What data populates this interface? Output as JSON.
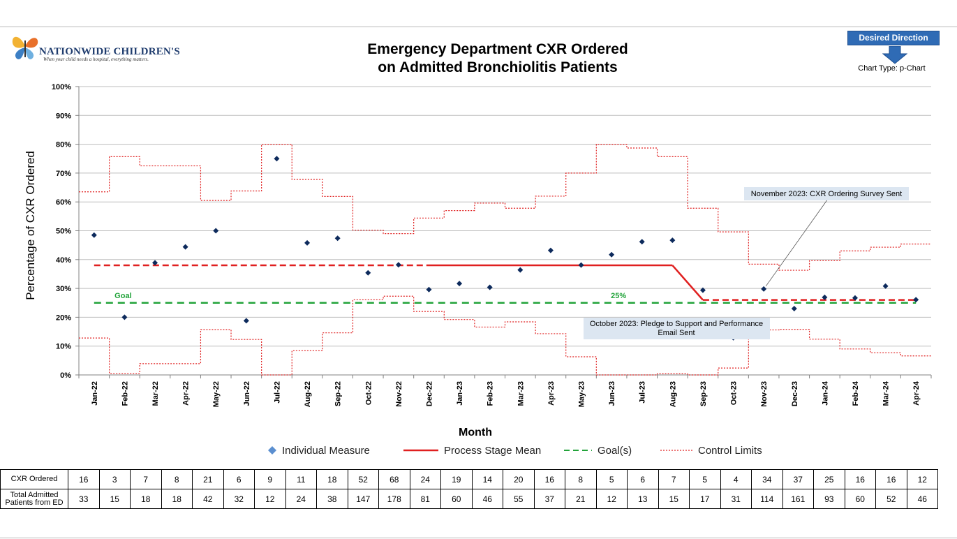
{
  "header": {
    "logo_name": "NATIONWIDE CHILDREN'S",
    "logo_tagline": "When your child needs a hospital, everything matters.",
    "title_line1": "Emergency Department CXR Ordered",
    "title_line2": "on Admitted Bronchiolitis Patients",
    "desired_direction": "Desired Direction",
    "chart_type": "Chart Type: p-Chart"
  },
  "legend": {
    "individual": "Individual Measure",
    "mean": "Process Stage Mean",
    "goal": "Goal(s)",
    "control": "Control Limits"
  },
  "colors": {
    "point": "#0d2a5c",
    "mean": "#e02020",
    "goal": "#22a33a",
    "control": "#e02020",
    "accent": "#2f6bb5"
  },
  "table": {
    "row1_label": "CXR Ordered",
    "row2_label": "Total Admitted Patients from ED",
    "cxr_ordered": [
      "16",
      "3",
      "7",
      "8",
      "21",
      "6",
      "9",
      "11",
      "18",
      "52",
      "68",
      "24",
      "19",
      "14",
      "20",
      "16",
      "8",
      "5",
      "6",
      "7",
      "5",
      "4",
      "34",
      "37",
      "25",
      "16",
      "16",
      "12"
    ],
    "total_admitted": [
      "33",
      "15",
      "18",
      "18",
      "42",
      "32",
      "12",
      "24",
      "38",
      "147",
      "178",
      "81",
      "60",
      "46",
      "55",
      "37",
      "21",
      "12",
      "13",
      "15",
      "17",
      "31",
      "114",
      "161",
      "93",
      "60",
      "52",
      "46"
    ]
  },
  "chart_data": {
    "type": "line",
    "ylabel": "Percentage of CXR Ordered",
    "xlabel": "Month",
    "ylim": [
      0,
      100
    ],
    "yticks": [
      0,
      10,
      20,
      30,
      40,
      50,
      60,
      70,
      80,
      90,
      100
    ],
    "ytick_labels": [
      "0%",
      "10%",
      "20%",
      "30%",
      "40%",
      "50%",
      "60%",
      "70%",
      "80%",
      "90%",
      "100%"
    ],
    "grid": true,
    "legend_position": "bottom",
    "categories": [
      "Jan-22",
      "Feb-22",
      "Mar-22",
      "Apr-22",
      "May-22",
      "Jun-22",
      "Jul-22",
      "Aug-22",
      "Sep-22",
      "Oct-22",
      "Nov-22",
      "Dec-22",
      "Jan-23",
      "Feb-23",
      "Mar-23",
      "Apr-23",
      "May-23",
      "Jun-23",
      "Jul-23",
      "Aug-23",
      "Sep-23",
      "Oct-23",
      "Nov-23",
      "Dec-23",
      "Jan-24",
      "Feb-24",
      "Mar-24",
      "Apr-24"
    ],
    "individual": [
      48.5,
      20.0,
      38.9,
      44.4,
      50.0,
      18.8,
      75.0,
      45.8,
      47.4,
      35.4,
      38.2,
      29.6,
      31.7,
      30.4,
      36.4,
      43.2,
      38.1,
      41.7,
      46.2,
      46.7,
      29.4,
      12.9,
      29.8,
      23.0,
      26.9,
      26.7,
      30.8,
      26.1
    ],
    "mean_stage1": {
      "from": "Jan-22",
      "to": "Aug-23",
      "value": 38
    },
    "mean_transition": {
      "from": "Aug-23",
      "to": "Sep-23"
    },
    "mean_stage2": {
      "from": "Sep-23",
      "to": "Apr-24",
      "value": 26
    },
    "goal": {
      "value": 25,
      "label": "Goal",
      "value_label": "25%"
    },
    "ucl": [
      63.5,
      75.7,
      72.5,
      72.5,
      60.5,
      63.8,
      80,
      67.8,
      61.9,
      50.2,
      49.0,
      54.4,
      57.0,
      59.6,
      57.8,
      62.0,
      70.0,
      80,
      78.7,
      75.7,
      57.8,
      49.6,
      38.4,
      36.3,
      39.6,
      43.0,
      44.3,
      45.4
    ],
    "lcl": [
      12.8,
      0.5,
      3.9,
      3.9,
      15.7,
      12.3,
      0,
      8.4,
      14.6,
      26.1,
      27.3,
      22.0,
      19.2,
      16.6,
      18.4,
      14.3,
      6.3,
      0,
      0,
      0.4,
      0,
      2.4,
      15.6,
      15.8,
      12.4,
      9.0,
      7.7,
      6.6
    ],
    "annotations": [
      {
        "text": "November 2023: CXR Ordering Survey Sent",
        "at": "Nov-23"
      },
      {
        "text": "October 2023: Pledge to Support and Performance Email Sent",
        "at": "Oct-23"
      }
    ]
  }
}
